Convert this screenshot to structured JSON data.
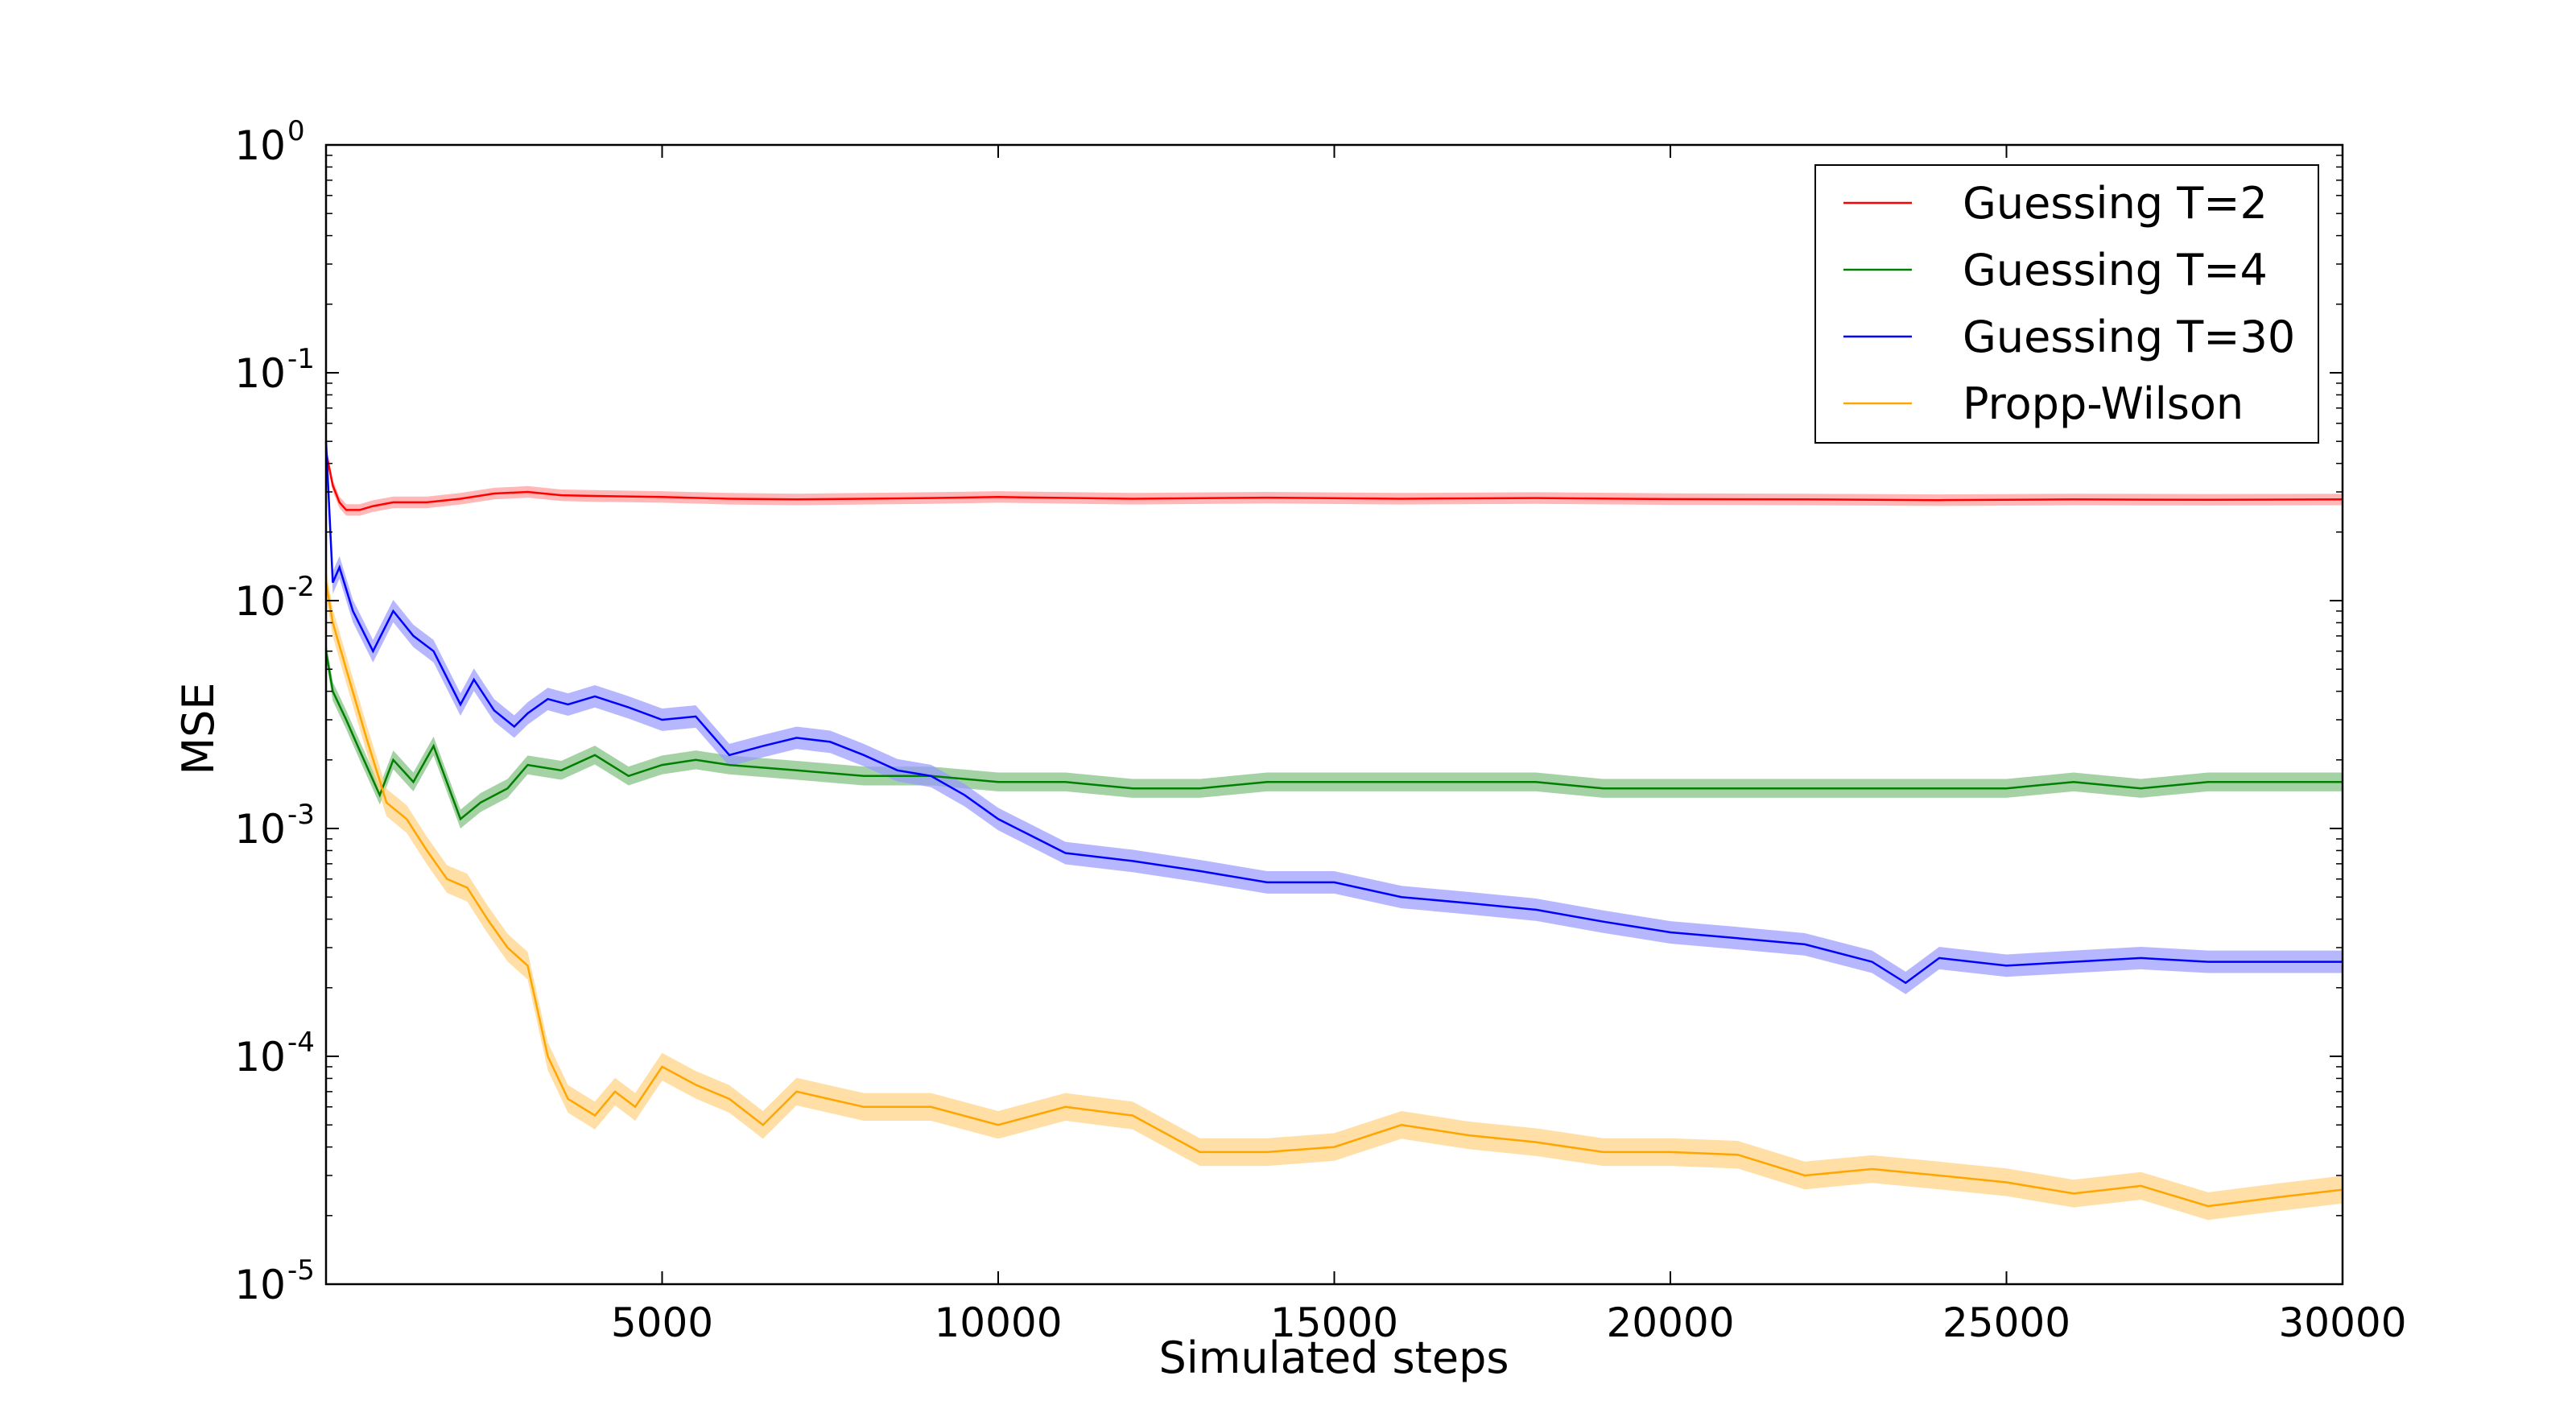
{
  "chart_data": {
    "type": "line",
    "xlabel": "Simulated steps",
    "ylabel": "MSE",
    "xlim": [
      0,
      30000
    ],
    "ylim": [
      1e-05,
      1
    ],
    "yscale": "log",
    "x_ticks": [
      5000,
      10000,
      15000,
      20000,
      25000,
      30000
    ],
    "x_tick_labels": [
      "5000",
      "10000",
      "15000",
      "20000",
      "25000",
      "30000"
    ],
    "y_ticks": [
      1e-05,
      0.0001,
      0.001,
      0.01,
      0.1,
      1
    ],
    "y_tick_labels": [
      {
        "base": "10",
        "exp": "-5"
      },
      {
        "base": "10",
        "exp": "-4"
      },
      {
        "base": "10",
        "exp": "-3"
      },
      {
        "base": "10",
        "exp": "-2"
      },
      {
        "base": "10",
        "exp": "-1"
      },
      {
        "base": "10",
        "exp": "0"
      }
    ],
    "grid": false,
    "legend_position": "top-right",
    "series": [
      {
        "name": "Guessing T=2",
        "color": "#ff0000",
        "fill_color": "#ff9999",
        "band": 0.06,
        "x": [
          0,
          100,
          200,
          300,
          500,
          700,
          1000,
          1500,
          2000,
          2500,
          3000,
          3500,
          4000,
          5000,
          6000,
          7000,
          8000,
          9000,
          10000,
          12000,
          14000,
          16000,
          18000,
          20000,
          22000,
          24000,
          26000,
          28000,
          30000
        ],
        "y": [
          0.045,
          0.032,
          0.027,
          0.025,
          0.025,
          0.026,
          0.027,
          0.027,
          0.028,
          0.0295,
          0.03,
          0.029,
          0.0288,
          0.0285,
          0.028,
          0.0278,
          0.028,
          0.0282,
          0.0285,
          0.028,
          0.0283,
          0.028,
          0.0282,
          0.0279,
          0.0278,
          0.0276,
          0.0278,
          0.0277,
          0.0278
        ]
      },
      {
        "name": "Guessing T=4",
        "color": "#008000",
        "fill_color": "#7fbf7f",
        "band": 0.1,
        "x": [
          0,
          100,
          300,
          500,
          800,
          1000,
          1300,
          1600,
          2000,
          2300,
          2700,
          3000,
          3500,
          4000,
          4500,
          5000,
          5500,
          6000,
          7000,
          8000,
          9000,
          10000,
          11000,
          12000,
          13000,
          14000,
          15000,
          16000,
          17000,
          18000,
          19000,
          20000,
          21000,
          22000,
          23000,
          24000,
          25000,
          26000,
          27000,
          28000,
          29000,
          30000
        ],
        "y": [
          0.006,
          0.004,
          0.003,
          0.0022,
          0.0014,
          0.002,
          0.0016,
          0.0023,
          0.0011,
          0.0013,
          0.0015,
          0.0019,
          0.0018,
          0.0021,
          0.0017,
          0.0019,
          0.002,
          0.0019,
          0.0018,
          0.0017,
          0.0017,
          0.0016,
          0.0016,
          0.0015,
          0.0015,
          0.0016,
          0.0016,
          0.0016,
          0.0016,
          0.0016,
          0.0015,
          0.0015,
          0.0015,
          0.0015,
          0.0015,
          0.0015,
          0.0015,
          0.0016,
          0.0015,
          0.0016,
          0.0016,
          0.0016
        ]
      },
      {
        "name": "Guessing T=30",
        "color": "#0000ff",
        "fill_color": "#9999ff",
        "band": 0.12,
        "x": [
          0,
          100,
          200,
          400,
          700,
          1000,
          1300,
          1600,
          2000,
          2200,
          2500,
          2800,
          3000,
          3300,
          3600,
          4000,
          4500,
          5000,
          5500,
          6000,
          6500,
          7000,
          7500,
          8000,
          8500,
          9000,
          9500,
          10000,
          11000,
          12000,
          13000,
          14000,
          15000,
          16000,
          17000,
          18000,
          19000,
          20000,
          21000,
          22000,
          23000,
          23500,
          24000,
          25000,
          26000,
          27000,
          28000,
          29000,
          30000
        ],
        "y": [
          0.05,
          0.012,
          0.014,
          0.009,
          0.006,
          0.009,
          0.007,
          0.006,
          0.0035,
          0.0045,
          0.0033,
          0.0028,
          0.0032,
          0.0037,
          0.0035,
          0.0038,
          0.0034,
          0.003,
          0.0031,
          0.0021,
          0.0023,
          0.0025,
          0.0024,
          0.0021,
          0.0018,
          0.0017,
          0.0014,
          0.0011,
          0.00078,
          0.00072,
          0.00065,
          0.00058,
          0.00058,
          0.0005,
          0.00047,
          0.00044,
          0.00039,
          0.00035,
          0.00033,
          0.00031,
          0.00026,
          0.00021,
          0.00027,
          0.00025,
          0.00026,
          0.00027,
          0.00026,
          0.00026,
          0.00026
        ]
      },
      {
        "name": "Propp-Wilson",
        "color": "#ffa500",
        "fill_color": "#ffd27f",
        "band": 0.15,
        "x": [
          0,
          100,
          300,
          600,
          900,
          1200,
          1500,
          1800,
          2100,
          2400,
          2700,
          3000,
          3300,
          3600,
          4000,
          4300,
          4600,
          5000,
          5500,
          6000,
          6500,
          7000,
          8000,
          9000,
          10000,
          11000,
          12000,
          13000,
          14000,
          15000,
          16000,
          17000,
          18000,
          19000,
          20000,
          21000,
          22000,
          23000,
          24000,
          25000,
          26000,
          27000,
          28000,
          29000,
          30000
        ],
        "y": [
          0.012,
          0.008,
          0.005,
          0.0025,
          0.0013,
          0.0011,
          0.0008,
          0.0006,
          0.00055,
          0.0004,
          0.0003,
          0.00025,
          0.0001,
          6.5e-05,
          5.5e-05,
          7e-05,
          6e-05,
          9e-05,
          7.5e-05,
          6.5e-05,
          5e-05,
          7e-05,
          6e-05,
          6e-05,
          5e-05,
          6e-05,
          5.5e-05,
          3.8e-05,
          3.8e-05,
          4e-05,
          5e-05,
          4.5e-05,
          4.2e-05,
          3.8e-05,
          3.8e-05,
          3.7e-05,
          3e-05,
          3.2e-05,
          3e-05,
          2.8e-05,
          2.5e-05,
          2.7e-05,
          2.2e-05,
          2.4e-05,
          2.6e-05
        ]
      }
    ]
  }
}
